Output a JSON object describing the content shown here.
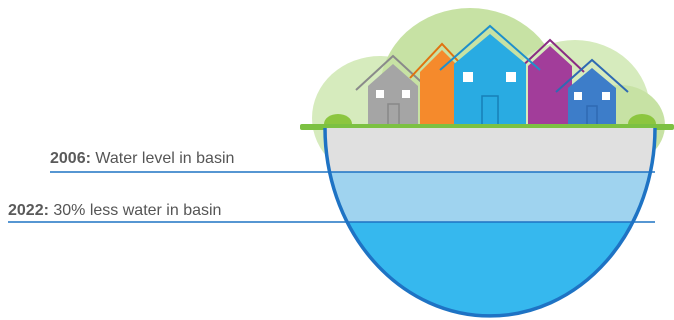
{
  "labels": {
    "level_2006": {
      "year": "2006:",
      "text": " Water level in basin"
    },
    "level_2022": {
      "year": "2022:",
      "text": " 30% less water in basin"
    }
  },
  "colors": {
    "ground": "#7cc142",
    "dry_band": "#e0e0e0",
    "water_2006": "#9fd3ef",
    "water_2022": "#36b8ee",
    "basin_outline": "#1e73c4",
    "leader_line": "#1e73c4",
    "trees": "#c7e2a4",
    "house_gray": "#a5a5a5",
    "house_orange": "#f58a2c",
    "house_blue": "#29abe2",
    "house_purple": "#a23d9a",
    "house_darkblue": "#3d7dc9"
  }
}
